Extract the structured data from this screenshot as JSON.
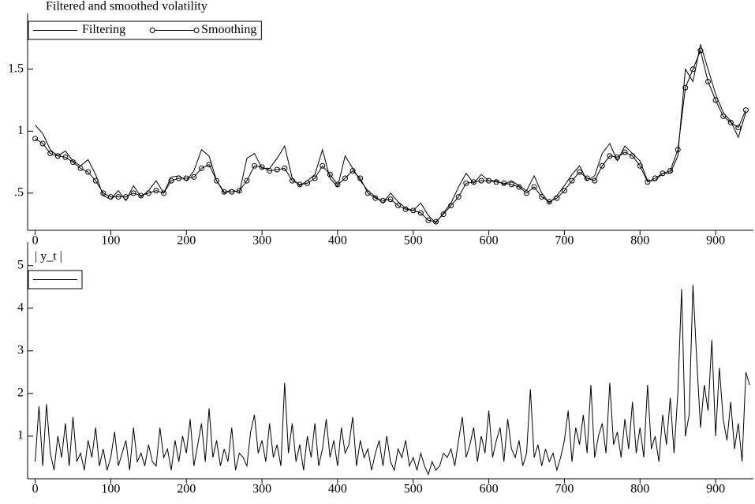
{
  "chart_data": [
    {
      "type": "line",
      "title": "Filtered and smoothed volatility",
      "x": [
        0,
        10,
        20,
        30,
        40,
        50,
        60,
        70,
        80,
        90,
        100,
        110,
        120,
        130,
        140,
        150,
        160,
        170,
        180,
        190,
        200,
        210,
        220,
        230,
        240,
        250,
        260,
        270,
        280,
        290,
        300,
        310,
        320,
        330,
        340,
        350,
        360,
        370,
        380,
        390,
        400,
        410,
        420,
        430,
        440,
        450,
        460,
        470,
        480,
        490,
        500,
        510,
        520,
        530,
        540,
        550,
        560,
        570,
        580,
        590,
        600,
        610,
        620,
        630,
        640,
        650,
        660,
        670,
        680,
        690,
        700,
        710,
        720,
        730,
        740,
        750,
        760,
        770,
        780,
        790,
        800,
        810,
        820,
        830,
        840,
        850,
        860,
        870,
        880,
        890,
        900,
        910,
        920,
        930,
        940
      ],
      "series": [
        {
          "name": "Filtering",
          "color": "#000000",
          "marker": "none",
          "values": [
            1.05,
            0.98,
            0.85,
            0.8,
            0.84,
            0.76,
            0.72,
            0.77,
            0.65,
            0.48,
            0.45,
            0.52,
            0.44,
            0.56,
            0.47,
            0.52,
            0.6,
            0.5,
            0.63,
            0.64,
            0.6,
            0.68,
            0.85,
            0.8,
            0.6,
            0.5,
            0.53,
            0.5,
            0.78,
            0.82,
            0.7,
            0.7,
            0.78,
            0.88,
            0.62,
            0.56,
            0.6,
            0.65,
            0.85,
            0.62,
            0.55,
            0.8,
            0.7,
            0.6,
            0.52,
            0.47,
            0.42,
            0.5,
            0.43,
            0.38,
            0.36,
            0.42,
            0.32,
            0.26,
            0.34,
            0.42,
            0.55,
            0.66,
            0.58,
            0.65,
            0.6,
            0.6,
            0.57,
            0.6,
            0.56,
            0.52,
            0.64,
            0.5,
            0.42,
            0.48,
            0.56,
            0.65,
            0.72,
            0.6,
            0.64,
            0.82,
            0.9,
            0.76,
            0.88,
            0.82,
            0.76,
            0.6,
            0.6,
            0.66,
            0.66,
            0.8,
            1.5,
            1.4,
            1.7,
            1.5,
            1.3,
            1.15,
            1.08,
            0.95,
            1.15
          ]
        },
        {
          "name": "Smoothing",
          "color": "#000000",
          "marker": "circle",
          "values": [
            0.94,
            0.9,
            0.82,
            0.8,
            0.79,
            0.75,
            0.7,
            0.67,
            0.6,
            0.5,
            0.47,
            0.47,
            0.47,
            0.5,
            0.48,
            0.5,
            0.52,
            0.5,
            0.6,
            0.62,
            0.62,
            0.63,
            0.7,
            0.73,
            0.6,
            0.51,
            0.51,
            0.52,
            0.6,
            0.72,
            0.71,
            0.68,
            0.69,
            0.7,
            0.6,
            0.57,
            0.58,
            0.62,
            0.72,
            0.65,
            0.57,
            0.62,
            0.68,
            0.62,
            0.5,
            0.46,
            0.44,
            0.45,
            0.4,
            0.37,
            0.36,
            0.34,
            0.28,
            0.27,
            0.33,
            0.4,
            0.47,
            0.58,
            0.59,
            0.6,
            0.6,
            0.59,
            0.58,
            0.57,
            0.55,
            0.5,
            0.55,
            0.47,
            0.43,
            0.46,
            0.52,
            0.6,
            0.67,
            0.62,
            0.6,
            0.72,
            0.8,
            0.79,
            0.83,
            0.8,
            0.72,
            0.59,
            0.62,
            0.66,
            0.68,
            0.85,
            1.35,
            1.5,
            1.65,
            1.4,
            1.25,
            1.12,
            1.07,
            1.03,
            1.17
          ]
        }
      ],
      "xlim": [
        -10,
        950
      ],
      "xticks": [
        0,
        100,
        200,
        300,
        400,
        500,
        600,
        700,
        800,
        900
      ],
      "ylim": [
        0.2,
        1.95
      ],
      "yticks": [
        {
          "value": 0.5,
          "label": ".5"
        },
        1,
        1.5
      ],
      "legend": "top-left"
    },
    {
      "type": "line",
      "title": "| y_t |",
      "x": [
        0,
        5,
        10,
        15,
        20,
        25,
        30,
        35,
        40,
        45,
        50,
        55,
        60,
        65,
        70,
        75,
        80,
        85,
        90,
        95,
        100,
        105,
        110,
        115,
        120,
        125,
        130,
        135,
        140,
        145,
        150,
        155,
        160,
        165,
        170,
        175,
        180,
        185,
        190,
        195,
        200,
        205,
        210,
        215,
        220,
        225,
        230,
        235,
        240,
        245,
        250,
        255,
        260,
        265,
        270,
        275,
        280,
        285,
        290,
        295,
        300,
        305,
        310,
        315,
        320,
        325,
        330,
        335,
        340,
        345,
        350,
        355,
        360,
        365,
        370,
        375,
        380,
        385,
        390,
        395,
        400,
        405,
        410,
        415,
        420,
        425,
        430,
        435,
        440,
        445,
        450,
        455,
        460,
        465,
        470,
        475,
        480,
        485,
        490,
        495,
        500,
        505,
        510,
        515,
        520,
        525,
        530,
        535,
        540,
        545,
        550,
        555,
        560,
        565,
        570,
        575,
        580,
        585,
        590,
        595,
        600,
        605,
        610,
        615,
        620,
        625,
        630,
        635,
        640,
        645,
        650,
        655,
        660,
        665,
        670,
        675,
        680,
        685,
        690,
        695,
        700,
        705,
        710,
        715,
        720,
        725,
        730,
        735,
        740,
        745,
        750,
        755,
        760,
        765,
        770,
        775,
        780,
        785,
        790,
        795,
        800,
        805,
        810,
        815,
        820,
        825,
        830,
        835,
        840,
        845,
        850,
        855,
        860,
        865,
        870,
        875,
        880,
        885,
        890,
        895,
        900,
        905,
        910,
        915,
        920,
        925,
        930,
        935,
        940,
        945
      ],
      "series": [
        {
          "color": "#000000",
          "marker": "none",
          "values": [
            0.4,
            1.7,
            0.3,
            1.75,
            0.6,
            0.2,
            1.0,
            0.5,
            1.3,
            0.3,
            1.45,
            0.4,
            0.6,
            0.2,
            0.9,
            0.5,
            1.2,
            0.3,
            0.7,
            0.2,
            0.5,
            1.1,
            0.3,
            0.6,
            0.9,
            0.2,
            1.2,
            0.4,
            0.6,
            0.3,
            0.8,
            0.4,
            0.3,
            1.2,
            0.5,
            0.7,
            0.2,
            0.9,
            0.4,
            1.0,
            0.6,
            1.4,
            0.3,
            0.8,
            1.3,
            0.4,
            1.65,
            0.5,
            0.9,
            0.3,
            0.7,
            0.4,
            1.2,
            0.2,
            0.6,
            0.5,
            0.3,
            1.1,
            1.5,
            0.6,
            0.9,
            0.4,
            1.3,
            0.5,
            0.8,
            0.3,
            2.25,
            0.6,
            1.3,
            0.4,
            0.8,
            0.2,
            1.0,
            0.5,
            1.3,
            0.3,
            0.7,
            1.4,
            0.5,
            0.9,
            0.3,
            1.2,
            0.6,
            0.8,
            1.45,
            0.3,
            0.9,
            0.5,
            0.7,
            0.2,
            0.6,
            0.9,
            0.3,
            1.0,
            0.4,
            0.2,
            0.7,
            0.5,
            0.9,
            0.3,
            0.5,
            0.2,
            0.6,
            0.3,
            0.1,
            0.4,
            0.2,
            0.3,
            0.6,
            0.5,
            0.7,
            0.3,
            0.9,
            1.45,
            0.5,
            0.8,
            1.2,
            0.4,
            1.0,
            0.6,
            1.6,
            0.5,
            0.9,
            1.2,
            0.4,
            1.4,
            0.7,
            0.5,
            0.9,
            0.3,
            0.6,
            2.1,
            0.5,
            0.8,
            0.3,
            0.7,
            0.4,
            0.6,
            0.2,
            0.5,
            0.9,
            1.6,
            0.4,
            1.2,
            0.8,
            1.5,
            0.6,
            2.2,
            0.5,
            1.0,
            1.3,
            0.6,
            2.25,
            0.8,
            1.1,
            0.5,
            1.4,
            0.7,
            1.8,
            0.6,
            1.2,
            0.5,
            2.2,
            0.7,
            1.0,
            0.4,
            1.5,
            0.8,
            1.9,
            0.6,
            2.0,
            4.45,
            1.0,
            1.5,
            4.55,
            2.8,
            1.2,
            2.2,
            1.6,
            3.25,
            1.0,
            2.6,
            1.4,
            0.9,
            1.8,
            0.7,
            1.3,
            0.4,
            2.5,
            2.2
          ]
        }
      ],
      "xlim": [
        -10,
        950
      ],
      "xticks": [
        0,
        100,
        200,
        300,
        400,
        500,
        600,
        700,
        800,
        900
      ],
      "ylim": [
        0,
        5.55
      ],
      "yticks": [
        1,
        2,
        3,
        4,
        5
      ],
      "legend": "top-left"
    }
  ]
}
